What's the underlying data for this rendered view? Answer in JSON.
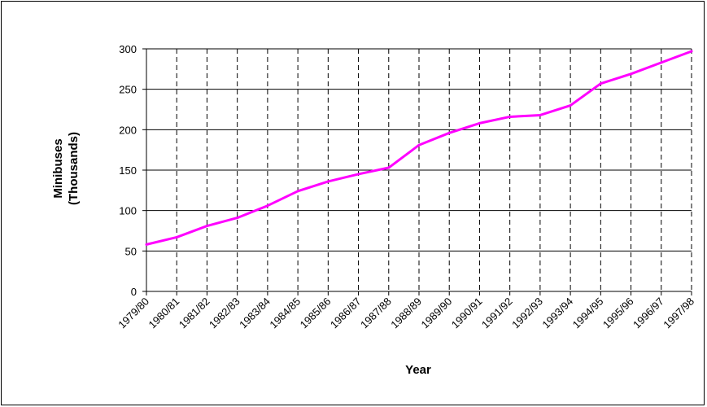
{
  "chart_data": {
    "type": "line",
    "title": "",
    "xlabel": "Year",
    "ylabel_lines": [
      "Minibuses",
      "(Thousands)"
    ],
    "categories": [
      "1979/80",
      "1980/81",
      "1981/82",
      "1982/83",
      "1983/84",
      "1984/85",
      "1985/86",
      "1986/87",
      "1987/88",
      "1988/89",
      "1989/90",
      "1990/91",
      "1991/92",
      "1992/93",
      "1993/94",
      "1994/95",
      "1995/96",
      "1996/97",
      "1997/98"
    ],
    "series": [
      {
        "values": [
          58,
          67,
          81,
          91,
          106,
          124,
          136,
          145,
          153,
          181,
          196,
          208,
          216,
          218,
          230,
          257,
          269,
          283,
          297
        ],
        "color": "#ff00ff"
      }
    ],
    "ylim": [
      0,
      300
    ],
    "yticks": [
      0,
      50,
      100,
      150,
      200,
      250,
      300
    ],
    "grid": {
      "horizontal": "solid",
      "vertical": "dashed"
    },
    "legend": "none"
  }
}
